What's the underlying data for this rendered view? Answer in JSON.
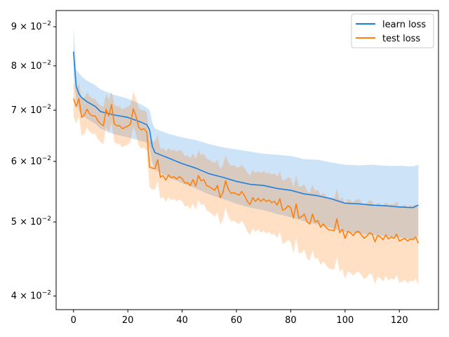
{
  "chart_data": {
    "type": "line",
    "title": "",
    "xlabel": "",
    "ylabel": "",
    "y_scale": "log",
    "xlim": [
      -6.4,
      134.4
    ],
    "ylim": [
      0.0384,
      0.0945
    ],
    "grid": false,
    "legend_position": "top-right",
    "x_ticks": [
      0,
      20,
      40,
      60,
      80,
      100,
      120
    ],
    "x_tick_labels": [
      "0",
      "20",
      "40",
      "60",
      "80",
      "100",
      "120"
    ],
    "y_ticks": [
      0.04,
      0.05,
      0.06,
      0.07,
      0.08,
      0.09
    ],
    "y_tick_mantissas": [
      "4",
      "5",
      "6",
      "7",
      "8",
      "9"
    ],
    "y_tick_base": "10",
    "y_tick_exponent": "−2",
    "series": [
      {
        "name": "learn loss",
        "color": "#1f77b4",
        "line_color": "#1a80e0",
        "band_color": "#1a80e0",
        "band_opacity": 0.22,
        "x": [
          0,
          1,
          2,
          3,
          5,
          8,
          10,
          15,
          20,
          25,
          27,
          28,
          29,
          30,
          35,
          40,
          45,
          50,
          55,
          60,
          65,
          70,
          75,
          80,
          85,
          90,
          95,
          100,
          105,
          110,
          115,
          120,
          125,
          127
        ],
        "values": [
          0.0835,
          0.0752,
          0.0735,
          0.0727,
          0.0718,
          0.0708,
          0.0697,
          0.069,
          0.0685,
          0.0675,
          0.067,
          0.066,
          0.0628,
          0.0616,
          0.0606,
          0.0596,
          0.0588,
          0.0578,
          0.0572,
          0.0565,
          0.056,
          0.0558,
          0.0553,
          0.055,
          0.0544,
          0.0541,
          0.0536,
          0.0529,
          0.0528,
          0.0526,
          0.0525,
          0.0523,
          0.0522,
          0.0526
        ],
        "upper": [
          0.0897,
          0.079,
          0.0783,
          0.0775,
          0.0765,
          0.0755,
          0.0745,
          0.0733,
          0.0725,
          0.0712,
          0.0705,
          0.07,
          0.0675,
          0.0662,
          0.0652,
          0.0645,
          0.064,
          0.0632,
          0.0626,
          0.0622,
          0.0618,
          0.0614,
          0.0612,
          0.061,
          0.0604,
          0.0603,
          0.0598,
          0.0594,
          0.0593,
          0.0594,
          0.0592,
          0.0592,
          0.0591,
          0.0594
        ],
        "lower": [
          0.0778,
          0.072,
          0.0698,
          0.069,
          0.0682,
          0.0672,
          0.0662,
          0.0651,
          0.0645,
          0.0638,
          0.0635,
          0.0625,
          0.0598,
          0.0585,
          0.0572,
          0.0562,
          0.0553,
          0.0543,
          0.0536,
          0.0528,
          0.0522,
          0.0518,
          0.0512,
          0.0507,
          0.0501,
          0.0496,
          0.0491,
          0.0485,
          0.0483,
          0.0481,
          0.0479,
          0.0477,
          0.0475,
          0.0479
        ]
      },
      {
        "name": "test loss",
        "color": "#ff7f0e",
        "line_color": "#ff7f0e",
        "band_color": "#ff7f0e",
        "band_opacity": 0.24,
        "x": [
          0,
          1,
          2,
          3,
          4,
          5,
          6,
          7,
          8,
          9,
          10,
          11,
          12,
          13,
          14,
          15,
          16,
          17,
          18,
          19,
          20,
          21,
          22,
          23,
          24,
          25,
          26,
          27,
          28,
          29,
          30,
          31,
          32,
          33,
          34,
          35,
          36,
          37,
          38,
          39,
          40,
          41,
          42,
          43,
          44,
          45,
          46,
          47,
          48,
          49,
          50,
          51,
          52,
          53,
          54,
          55,
          56,
          57,
          58,
          59,
          60,
          61,
          62,
          63,
          64,
          65,
          66,
          67,
          68,
          69,
          70,
          71,
          72,
          73,
          74,
          75,
          76,
          77,
          78,
          79,
          80,
          81,
          82,
          83,
          84,
          85,
          86,
          87,
          88,
          89,
          90,
          91,
          92,
          93,
          94,
          95,
          96,
          97,
          98,
          99,
          100,
          101,
          102,
          103,
          104,
          105,
          106,
          107,
          108,
          109,
          110,
          111,
          112,
          113,
          114,
          115,
          116,
          117,
          118,
          119,
          120,
          121,
          122,
          123,
          124,
          125,
          126,
          127
        ],
        "values": [
          0.0725,
          0.0708,
          0.0725,
          0.0685,
          0.069,
          0.0702,
          0.0692,
          0.0688,
          0.0688,
          0.0678,
          0.0672,
          0.0668,
          0.0702,
          0.0688,
          0.0712,
          0.0672,
          0.0668,
          0.0668,
          0.0662,
          0.0665,
          0.0667,
          0.0672,
          0.0703,
          0.0688,
          0.0665,
          0.066,
          0.0662,
          0.0655,
          0.059,
          0.0588,
          0.0587,
          0.0603,
          0.0572,
          0.0575,
          0.0567,
          0.0576,
          0.0571,
          0.0573,
          0.0569,
          0.0573,
          0.057,
          0.0562,
          0.0563,
          0.0558,
          0.0568,
          0.0557,
          0.0575,
          0.0566,
          0.0568,
          0.0558,
          0.0556,
          0.0553,
          0.055,
          0.0558,
          0.0538,
          0.0546,
          0.0566,
          0.0552,
          0.0545,
          0.0546,
          0.0544,
          0.0542,
          0.0548,
          0.0541,
          0.0532,
          0.0527,
          0.0538,
          0.0532,
          0.0537,
          0.0532,
          0.0536,
          0.0532,
          0.0534,
          0.053,
          0.0532,
          0.0526,
          0.0536,
          0.0518,
          0.052,
          0.0525,
          0.0522,
          0.0506,
          0.0528,
          0.0506,
          0.0508,
          0.0512,
          0.05,
          0.0497,
          0.0512,
          0.05,
          0.0502,
          0.0492,
          0.0497,
          0.0492,
          0.0488,
          0.0488,
          0.0487,
          0.0505,
          0.0484,
          0.0489,
          0.0476,
          0.0486,
          0.0484,
          0.048,
          0.0485,
          0.0486,
          0.0481,
          0.0476,
          0.0479,
          0.0484,
          0.0482,
          0.0471,
          0.048,
          0.0478,
          0.0474,
          0.0481,
          0.0475,
          0.0478,
          0.0476,
          0.0482,
          0.0472,
          0.0474,
          0.0476,
          0.0472,
          0.0475,
          0.0474,
          0.0478,
          0.0469
        ],
        "upper": [
          0.0765,
          0.0745,
          0.076,
          0.0725,
          0.0728,
          0.0738,
          0.073,
          0.0725,
          0.0724,
          0.0715,
          0.071,
          0.0707,
          0.0735,
          0.0722,
          0.0742,
          0.0712,
          0.0708,
          0.0708,
          0.0702,
          0.0705,
          0.0707,
          0.0712,
          0.074,
          0.0725,
          0.0705,
          0.07,
          0.07,
          0.0695,
          0.064,
          0.0638,
          0.0637,
          0.065,
          0.0622,
          0.0625,
          0.0618,
          0.0625,
          0.062,
          0.0622,
          0.0618,
          0.0621,
          0.0618,
          0.061,
          0.0611,
          0.0606,
          0.0615,
          0.0605,
          0.062,
          0.0612,
          0.0614,
          0.0605,
          0.0603,
          0.06,
          0.0597,
          0.0604,
          0.0586,
          0.0593,
          0.0611,
          0.0598,
          0.0592,
          0.0593,
          0.059,
          0.0589,
          0.0594,
          0.0588,
          0.058,
          0.0575,
          0.0585,
          0.0579,
          0.0583,
          0.0579,
          0.0583,
          0.0579,
          0.058,
          0.0577,
          0.0579,
          0.0573,
          0.0582,
          0.0566,
          0.0568,
          0.0572,
          0.057,
          0.0555,
          0.0575,
          0.0555,
          0.0557,
          0.056,
          0.0549,
          0.0546,
          0.056,
          0.0549,
          0.0551,
          0.0542,
          0.0546,
          0.0541,
          0.0538,
          0.0538,
          0.0537,
          0.0553,
          0.0534,
          0.0539,
          0.0527,
          0.0536,
          0.0534,
          0.053,
          0.0535,
          0.0536,
          0.0531,
          0.0527,
          0.0529,
          0.0534,
          0.0532,
          0.0522,
          0.053,
          0.0528,
          0.0525,
          0.0531,
          0.0526,
          0.0528,
          0.0527,
          0.0532,
          0.0523,
          0.0525,
          0.0527,
          0.0523,
          0.0526,
          0.0525,
          0.0528,
          0.052
        ],
        "lower": [
          0.0688,
          0.0672,
          0.0688,
          0.0648,
          0.0652,
          0.0665,
          0.0655,
          0.0652,
          0.0652,
          0.0642,
          0.0636,
          0.0632,
          0.0666,
          0.0652,
          0.0675,
          0.0636,
          0.0632,
          0.0632,
          0.0626,
          0.0629,
          0.0631,
          0.0636,
          0.0666,
          0.0652,
          0.0629,
          0.0624,
          0.0626,
          0.0619,
          0.0555,
          0.0552,
          0.0551,
          0.0566,
          0.0536,
          0.0539,
          0.0531,
          0.0539,
          0.0534,
          0.0536,
          0.0532,
          0.0535,
          0.0532,
          0.0524,
          0.0525,
          0.052,
          0.0529,
          0.0518,
          0.0535,
          0.0526,
          0.0528,
          0.0518,
          0.0515,
          0.0512,
          0.0508,
          0.0515,
          0.0496,
          0.0503,
          0.0522,
          0.0508,
          0.0501,
          0.0502,
          0.0499,
          0.0497,
          0.0502,
          0.0495,
          0.0486,
          0.0481,
          0.0491,
          0.0485,
          0.0489,
          0.0484,
          0.0487,
          0.0483,
          0.0485,
          0.0481,
          0.0482,
          0.0476,
          0.0486,
          0.0468,
          0.047,
          0.0474,
          0.0471,
          0.0455,
          0.0476,
          0.0455,
          0.0456,
          0.046,
          0.0448,
          0.0445,
          0.0459,
          0.0447,
          0.0449,
          0.0439,
          0.0444,
          0.0439,
          0.0435,
          0.0434,
          0.0433,
          0.045,
          0.043,
          0.0434,
          0.0421,
          0.0431,
          0.0429,
          0.0425,
          0.0429,
          0.0431,
          0.0426,
          0.0421,
          0.0423,
          0.0428,
          0.0426,
          0.0415,
          0.0424,
          0.0422,
          0.0418,
          0.0425,
          0.0419,
          0.0422,
          0.042,
          0.0426,
          0.0416,
          0.0418,
          0.042,
          0.0416,
          0.0419,
          0.0418,
          0.0422,
          0.0413
        ]
      }
    ]
  }
}
